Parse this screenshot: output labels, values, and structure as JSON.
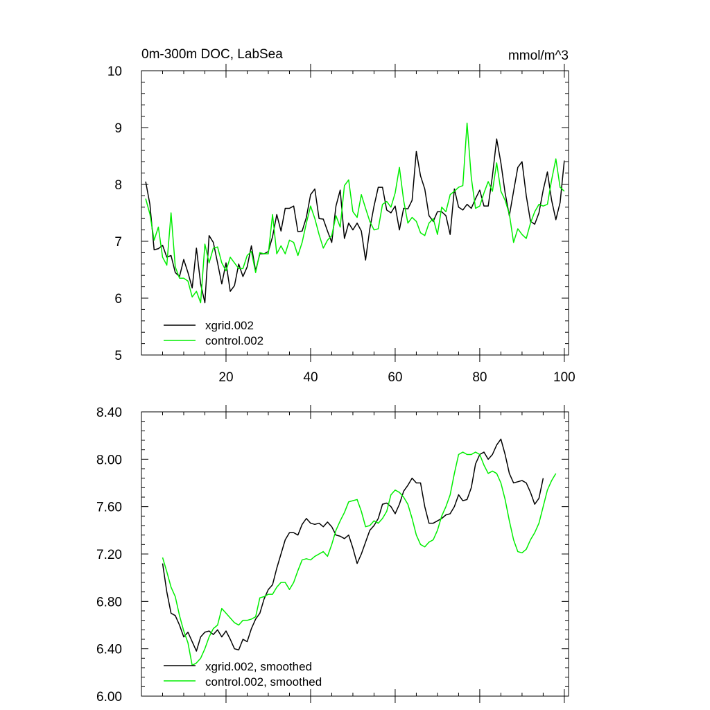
{
  "chart_data": [
    {
      "type": "line",
      "title": "0m-300m DOC, LabSea",
      "units": "mmol/m^3",
      "xlim": [
        0,
        101
      ],
      "ylim": [
        5,
        10
      ],
      "x_tick_values": [
        20,
        40,
        60,
        80,
        100
      ],
      "x_tick_labels": [
        "20",
        "40",
        "60",
        "80",
        "100"
      ],
      "y_tick_values": [
        5,
        6,
        7,
        8,
        9,
        10
      ],
      "y_tick_labels": [
        "5",
        "6",
        "7",
        "8",
        "9",
        "10"
      ],
      "legend_position": "bottom-left",
      "x_start": 1,
      "series": [
        {
          "name": "xgrid.002",
          "color": "#000000",
          "values": [
            8.05,
            7.65,
            6.85,
            6.87,
            6.93,
            6.72,
            6.75,
            6.45,
            6.38,
            6.68,
            6.45,
            6.18,
            6.88,
            6.25,
            5.92,
            7.1,
            6.98,
            6.62,
            6.25,
            6.62,
            6.12,
            6.22,
            6.6,
            6.38,
            6.55,
            6.92,
            6.48,
            6.78,
            6.78,
            6.82,
            7.08,
            7.47,
            7.18,
            7.58,
            7.58,
            7.62,
            7.17,
            7.18,
            7.42,
            7.82,
            7.92,
            7.4,
            7.39,
            7.18,
            6.98,
            7.62,
            7.9,
            7.05,
            7.32,
            7.2,
            7.32,
            7.18,
            6.67,
            7.22,
            7.62,
            7.95,
            7.95,
            7.55,
            7.5,
            7.62,
            7.2,
            7.58,
            7.57,
            7.72,
            8.58,
            8.15,
            7.92,
            7.45,
            7.35,
            7.52,
            7.52,
            7.45,
            7.12,
            7.92,
            7.6,
            7.55,
            7.65,
            7.58,
            7.75,
            7.9,
            7.62,
            7.62,
            8.15,
            8.8,
            8.38,
            7.85,
            7.45,
            7.88,
            8.3,
            8.4,
            7.8,
            7.35,
            7.3,
            7.5,
            7.9,
            8.22,
            7.72,
            7.38,
            7.68,
            8.42
          ]
        },
        {
          "name": "control.002",
          "color": "#00ee00",
          "values": [
            7.75,
            7.48,
            7.02,
            7.25,
            6.72,
            6.58,
            7.5,
            6.55,
            6.35,
            6.35,
            6.3,
            6.02,
            6.12,
            5.92,
            6.95,
            6.62,
            6.88,
            6.9,
            6.62,
            6.48,
            6.72,
            6.62,
            6.52,
            6.52,
            6.75,
            6.82,
            6.45,
            6.8,
            6.78,
            6.78,
            7.47,
            6.78,
            6.92,
            6.78,
            7.02,
            6.98,
            6.75,
            6.98,
            7.32,
            7.62,
            7.4,
            7.12,
            6.88,
            7.02,
            7.1,
            7.45,
            7.25,
            7.98,
            8.08,
            7.52,
            7.42,
            7.82,
            7.58,
            7.35,
            7.2,
            7.22,
            7.65,
            7.7,
            7.6,
            7.85,
            8.3,
            7.72,
            7.32,
            7.42,
            7.35,
            7.15,
            7.1,
            7.32,
            7.4,
            7.12,
            7.6,
            7.52,
            7.82,
            7.88,
            7.95,
            7.98,
            9.08,
            8.12,
            7.58,
            7.62,
            7.85,
            8.05,
            7.88,
            8.38,
            7.88,
            7.72,
            7.48,
            6.98,
            7.22,
            7.12,
            7.05,
            7.32,
            7.52,
            7.65,
            7.62,
            7.65,
            8.08,
            8.45,
            7.95,
            7.88
          ]
        }
      ]
    },
    {
      "type": "line",
      "title": "",
      "xlim": [
        0,
        101
      ],
      "ylim": [
        6.0,
        8.4
      ],
      "x_tick_values": [
        20,
        40,
        60,
        80,
        100
      ],
      "y_tick_values": [
        6.0,
        6.4,
        6.8,
        7.2,
        7.6,
        8.0,
        8.4
      ],
      "y_tick_labels": [
        "6.00",
        "6.40",
        "6.80",
        "7.20",
        "7.60",
        "8.00",
        "8.40"
      ],
      "legend_position": "bottom-left",
      "x_start": 5,
      "series": [
        {
          "name": "xgrid.002, smoothed",
          "color": "#000000",
          "values": [
            7.12,
            6.88,
            6.7,
            6.68,
            6.6,
            6.5,
            6.54,
            6.46,
            6.38,
            6.5,
            6.54,
            6.55,
            6.52,
            6.56,
            6.5,
            6.55,
            6.48,
            6.4,
            6.39,
            6.48,
            6.46,
            6.57,
            6.65,
            6.7,
            6.82,
            6.9,
            6.94,
            7.08,
            7.2,
            7.32,
            7.38,
            7.38,
            7.36,
            7.45,
            7.5,
            7.46,
            7.45,
            7.46,
            7.43,
            7.47,
            7.43,
            7.36,
            7.35,
            7.33,
            7.36,
            7.25,
            7.12,
            7.2,
            7.3,
            7.4,
            7.44,
            7.5,
            7.62,
            7.63,
            7.6,
            7.54,
            7.62,
            7.73,
            7.78,
            7.84,
            7.8,
            7.8,
            7.6,
            7.46,
            7.46,
            7.48,
            7.5,
            7.53,
            7.54,
            7.6,
            7.7,
            7.65,
            7.66,
            7.76,
            7.96,
            8.04,
            8.06,
            8.0,
            8.04,
            8.12,
            8.17,
            8.04,
            7.88,
            7.8,
            7.81,
            7.82,
            7.8,
            7.72,
            7.62,
            7.67,
            7.84
          ]
        },
        {
          "name": "control.002, smoothed",
          "color": "#00ee00",
          "values": [
            7.17,
            7.05,
            6.92,
            6.84,
            6.68,
            6.55,
            6.45,
            6.26,
            6.28,
            6.32,
            6.4,
            6.5,
            6.57,
            6.6,
            6.74,
            6.7,
            6.66,
            6.62,
            6.6,
            6.64,
            6.64,
            6.65,
            6.67,
            6.83,
            6.84,
            6.86,
            6.86,
            6.92,
            6.96,
            6.96,
            6.9,
            6.96,
            7.06,
            7.15,
            7.16,
            7.15,
            7.18,
            7.2,
            7.22,
            7.18,
            7.28,
            7.4,
            7.48,
            7.55,
            7.64,
            7.65,
            7.66,
            7.56,
            7.43,
            7.44,
            7.48,
            7.46,
            7.5,
            7.56,
            7.7,
            7.74,
            7.72,
            7.68,
            7.62,
            7.5,
            7.36,
            7.28,
            7.26,
            7.3,
            7.32,
            7.4,
            7.52,
            7.6,
            7.7,
            7.88,
            8.04,
            8.06,
            8.04,
            8.04,
            8.06,
            8.04,
            7.95,
            7.88,
            7.9,
            7.88,
            7.8,
            7.66,
            7.48,
            7.32,
            7.22,
            7.21,
            7.24,
            7.32,
            7.38,
            7.46,
            7.6,
            7.74,
            7.82,
            7.88
          ]
        }
      ]
    }
  ]
}
